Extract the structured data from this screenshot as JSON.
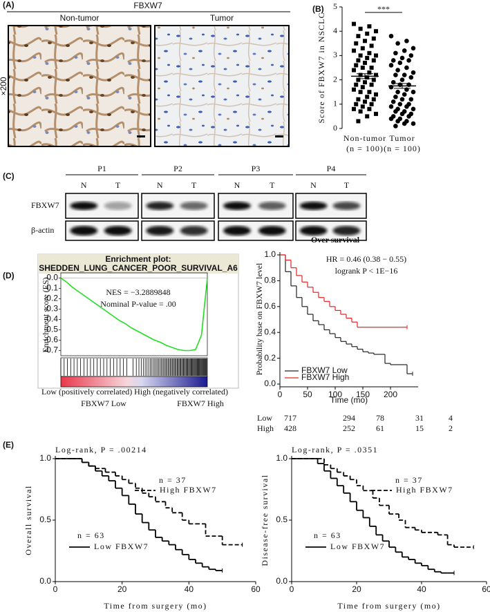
{
  "panel_labels": [
    "(A)",
    "(B)",
    "(C)",
    "(D)",
    "(E)"
  ],
  "panel_a": {
    "title": "FBXW7",
    "columns": [
      "Non-tumor",
      "Tumor"
    ],
    "magnification": "×200"
  },
  "panel_c": {
    "patients": [
      "P1",
      "P2",
      "P3",
      "P4"
    ],
    "lanes": [
      "N",
      "T"
    ],
    "rows": [
      "FBXW7",
      "β-actin"
    ]
  },
  "chart_data": [
    {
      "type": "strip",
      "ylabel": "Score of FBXW7 in NSCLC",
      "categories": [
        "Non-tumor",
        "Tumor"
      ],
      "n_labels": [
        "(n = 100)",
        "(n = 100)"
      ],
      "markers": [
        "square",
        "circle"
      ],
      "color": "#000000",
      "ylim": [
        0,
        5
      ],
      "yticks": [
        0,
        1,
        2,
        3,
        4,
        5
      ],
      "significance": "***",
      "means": [
        2.15,
        1.75
      ],
      "errors": [
        0.1,
        0.1
      ],
      "values": [
        [
          4.3,
          4.2,
          4.1,
          4.0,
          3.9,
          3.8,
          3.7,
          3.6,
          3.5,
          3.4,
          3.3,
          3.2,
          3.1,
          3.0,
          3.0,
          2.9,
          2.8,
          2.8,
          2.7,
          2.6,
          2.5,
          2.5,
          2.4,
          2.3,
          2.2,
          2.2,
          2.1,
          2.0,
          2.0,
          1.9,
          1.8,
          1.8,
          1.7,
          1.6,
          1.5,
          1.5,
          1.4,
          1.3,
          1.2,
          1.2,
          1.1,
          1.0,
          1.0,
          0.9,
          0.8,
          0.8,
          0.7,
          0.6,
          0.5,
          0.3
        ],
        [
          3.8,
          3.6,
          3.5,
          3.3,
          3.2,
          3.1,
          3.0,
          2.9,
          2.8,
          2.8,
          2.7,
          2.6,
          2.5,
          2.4,
          2.3,
          2.2,
          2.2,
          2.1,
          2.0,
          1.9,
          1.8,
          1.8,
          1.7,
          1.6,
          1.5,
          1.5,
          1.4,
          1.3,
          1.2,
          1.2,
          1.1,
          1.0,
          1.0,
          0.9,
          0.9,
          0.8,
          0.8,
          0.7,
          0.7,
          0.6,
          0.6,
          0.5,
          0.5,
          0.4,
          0.4,
          0.3,
          0.3,
          0.2,
          0.2,
          0.1
        ]
      ]
    },
    {
      "type": "line",
      "title": "Enrichment plot:",
      "subtitle": "SHEDDEN_LUNG_CANCER_POOR_SURVIVAL_A6",
      "ylabel": "Enrichment score (ES)",
      "color": "#22dd22",
      "ylim": [
        -0.75,
        0.05
      ],
      "yticks": [
        {
          "value": 0,
          "label": "0.0"
        },
        -0.1,
        -0.2,
        -0.3,
        -0.4,
        -0.5,
        -0.6,
        -0.7
      ],
      "values": [
        0,
        -0.04,
        -0.09,
        -0.13,
        -0.17,
        -0.21,
        -0.25,
        -0.29,
        -0.33,
        -0.37,
        -0.41,
        -0.44,
        -0.48,
        -0.51,
        -0.54,
        -0.57,
        -0.6,
        -0.62,
        -0.65,
        -0.67,
        -0.69,
        -0.7,
        -0.7,
        -0.69,
        -0.55,
        0.0
      ],
      "annotations": [
        "NES = −3.2889848",
        "Nominal P-value = .00"
      ],
      "phenotype_labels": [
        "Low (positively correlated)",
        "High (negatively correlated)"
      ],
      "phenotype_colors": [
        "#e03030",
        "#4a90d0"
      ],
      "group_labels": [
        "FBXW7 Low",
        "FBXW7 High"
      ]
    },
    {
      "type": "km",
      "title": "Over survival",
      "xlabel": "Time (mo)",
      "ylabel": "Probability base on FBXW7 level",
      "xlim": [
        0,
        250
      ],
      "xticks": [
        0,
        50,
        100,
        150,
        200
      ],
      "ylim": [
        0,
        1
      ],
      "yticks": [
        {
          "value": 0,
          "label": "0.0"
        },
        0.2,
        0.4,
        0.6,
        0.8,
        {
          "value": 1,
          "label": "1.0"
        }
      ],
      "annotations": [
        "HR = 0.46 (0.38 − 0.55)",
        "logrank P < 1E−16"
      ],
      "series": [
        {
          "name": "FBXW7 Low",
          "color": "#222222",
          "x": [
            0,
            10,
            20,
            30,
            40,
            50,
            60,
            70,
            80,
            90,
            100,
            110,
            120,
            130,
            140,
            150,
            160,
            170,
            180,
            190,
            200,
            210,
            220,
            230,
            240
          ],
          "y": [
            1,
            0.87,
            0.76,
            0.67,
            0.6,
            0.54,
            0.49,
            0.46,
            0.42,
            0.39,
            0.36,
            0.33,
            0.31,
            0.29,
            0.27,
            0.25,
            0.24,
            0.23,
            0.23,
            0.16,
            0.15,
            0.15,
            0.15,
            0.08,
            0.08
          ]
        },
        {
          "name": "FBXW7 High",
          "color": "#e82020",
          "x": [
            0,
            10,
            20,
            30,
            40,
            50,
            60,
            70,
            80,
            90,
            100,
            110,
            120,
            130,
            140,
            150,
            160,
            170,
            180,
            190,
            200,
            210,
            220,
            230
          ],
          "y": [
            1,
            0.96,
            0.9,
            0.84,
            0.79,
            0.75,
            0.71,
            0.67,
            0.64,
            0.6,
            0.57,
            0.54,
            0.51,
            0.48,
            0.44,
            0.44,
            0.44,
            0.44,
            0.44,
            0.44,
            0.44,
            0.44,
            0.44,
            0.44
          ]
        }
      ],
      "risk_table": {
        "rows": [
          {
            "name": "Low",
            "color": "#222222",
            "values": [
              717,
              294,
              78,
              31,
              4
            ]
          },
          {
            "name": "High",
            "color": "#e82020",
            "values": [
              428,
              252,
              61,
              15,
              2
            ]
          }
        ]
      }
    },
    {
      "type": "km",
      "annotation": "Log-rank, P = .00214",
      "xlabel": "Time from surgery (mo)",
      "ylabel": "Overall survival",
      "xlim": [
        0,
        60
      ],
      "xticks": [
        0,
        20,
        40,
        60
      ],
      "ylim": [
        0,
        1
      ],
      "yticks": [
        {
          "value": 0,
          "label": "0.0"
        },
        0.5,
        {
          "value": 1,
          "label": "1.0"
        }
      ],
      "series": [
        {
          "name": "High FBXW7",
          "n_label": "n = 37",
          "dashed": true,
          "color": "#000000",
          "x": [
            0,
            5,
            8,
            10,
            12,
            15,
            18,
            20,
            22,
            24,
            26,
            28,
            30,
            33,
            35,
            38,
            40,
            42,
            45,
            50,
            56
          ],
          "y": [
            1,
            1,
            0.97,
            0.94,
            0.92,
            0.89,
            0.86,
            0.83,
            0.8,
            0.76,
            0.72,
            0.69,
            0.65,
            0.6,
            0.56,
            0.5,
            0.47,
            0.47,
            0.37,
            0.3,
            0.3
          ]
        },
        {
          "name": "Low FBXW7",
          "n_label": "n = 63",
          "dashed": false,
          "color": "#000000",
          "x": [
            0,
            5,
            8,
            10,
            12,
            14,
            16,
            18,
            20,
            22,
            24,
            26,
            28,
            30,
            32,
            34,
            36,
            38,
            40,
            42,
            44,
            46,
            48,
            50
          ],
          "y": [
            1,
            1,
            0.97,
            0.94,
            0.9,
            0.86,
            0.82,
            0.76,
            0.7,
            0.63,
            0.55,
            0.48,
            0.42,
            0.36,
            0.33,
            0.3,
            0.26,
            0.22,
            0.18,
            0.15,
            0.12,
            0.1,
            0.09,
            0.09
          ]
        }
      ]
    },
    {
      "type": "km",
      "annotation": "Log-rank, P = .0351",
      "xlabel": "Time from surgery (mo)",
      "ylabel": "Disease-free survival",
      "xlim": [
        0,
        60
      ],
      "xticks": [
        0,
        20,
        40,
        60
      ],
      "ylim": [
        0,
        1
      ],
      "yticks": [
        {
          "value": 0,
          "label": "0.0"
        },
        0.5,
        {
          "value": 1,
          "label": "1.0"
        }
      ],
      "series": [
        {
          "name": "High FBXW7",
          "n_label": "n = 37",
          "dashed": true,
          "color": "#000000",
          "x": [
            0,
            8,
            10,
            12,
            14,
            16,
            18,
            20,
            22,
            25,
            27,
            30,
            33,
            35,
            38,
            40,
            45,
            48,
            50,
            56
          ],
          "y": [
            1,
            1,
            0.95,
            0.92,
            0.89,
            0.86,
            0.83,
            0.78,
            0.74,
            0.68,
            0.62,
            0.55,
            0.5,
            0.44,
            0.42,
            0.4,
            0.38,
            0.3,
            0.28,
            0.28
          ]
        },
        {
          "name": "Low FBXW7",
          "n_label": "n = 63",
          "dashed": false,
          "color": "#000000",
          "x": [
            0,
            6,
            8,
            10,
            12,
            14,
            16,
            18,
            20,
            22,
            24,
            26,
            28,
            30,
            32,
            34,
            36,
            38,
            40,
            42,
            44,
            46,
            48,
            50
          ],
          "y": [
            1,
            1,
            0.96,
            0.9,
            0.84,
            0.78,
            0.72,
            0.65,
            0.58,
            0.52,
            0.45,
            0.38,
            0.33,
            0.28,
            0.24,
            0.2,
            0.18,
            0.15,
            0.13,
            0.1,
            0.08,
            0.07,
            0.07,
            0.07
          ]
        }
      ]
    }
  ]
}
